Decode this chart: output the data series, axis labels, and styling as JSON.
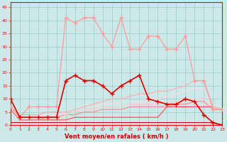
{
  "x": [
    0,
    1,
    2,
    3,
    4,
    5,
    6,
    7,
    8,
    9,
    10,
    11,
    12,
    13,
    14,
    15,
    16,
    17,
    18,
    19,
    20,
    21,
    22,
    23
  ],
  "lines": [
    {
      "y": [
        7,
        3,
        7,
        7,
        7,
        7,
        41,
        39,
        41,
        41,
        35,
        30,
        41,
        29,
        29,
        34,
        34,
        29,
        29,
        34,
        17,
        17,
        6,
        6
      ],
      "color": "#ffbbbb",
      "marker": "None",
      "lw": 0.8,
      "ms": 0,
      "zorder": 2,
      "ls": "--"
    },
    {
      "y": [
        7,
        3,
        7,
        7,
        7,
        7,
        41,
        39,
        41,
        41,
        35,
        30,
        41,
        29,
        29,
        34,
        34,
        29,
        29,
        34,
        17,
        17,
        6,
        6
      ],
      "color": "#ff9999",
      "marker": "+",
      "lw": 0.8,
      "ms": 4,
      "zorder": 3,
      "ls": "-"
    },
    {
      "y": [
        10,
        3,
        3,
        3,
        3,
        3,
        17,
        19,
        17,
        17,
        15,
        12,
        15,
        17,
        19,
        10,
        9,
        8,
        8,
        10,
        9,
        4,
        1,
        0
      ],
      "color": "#dd0000",
      "marker": "+",
      "lw": 1.2,
      "ms": 4,
      "zorder": 4,
      "ls": "-"
    },
    {
      "y": [
        6,
        2,
        2,
        2,
        2,
        2,
        2,
        3,
        3,
        3,
        3,
        3,
        3,
        3,
        3,
        3,
        3,
        7,
        7,
        7,
        7,
        7,
        7,
        6
      ],
      "color": "#ff4444",
      "marker": "None",
      "lw": 0.8,
      "ms": 0,
      "zorder": 2,
      "ls": "-"
    },
    {
      "y": [
        1,
        1,
        1,
        1,
        1,
        1,
        1,
        1,
        1,
        1,
        1,
        1,
        1,
        1,
        1,
        1,
        1,
        1,
        1,
        1,
        1,
        1,
        1,
        0
      ],
      "color": "#cc0000",
      "marker": "None",
      "lw": 0.8,
      "ms": 0,
      "zorder": 2,
      "ls": "-"
    },
    {
      "y": [
        6,
        2,
        2,
        2,
        3,
        3,
        4,
        4,
        5,
        5,
        6,
        6,
        6,
        7,
        7,
        7,
        7,
        7,
        8,
        8,
        9,
        9,
        6,
        6
      ],
      "color": "#ff8888",
      "marker": "None",
      "lw": 0.8,
      "ms": 0,
      "zorder": 2,
      "ls": "-"
    },
    {
      "y": [
        7,
        3,
        3,
        3,
        4,
        4,
        4,
        5,
        6,
        6,
        7,
        7,
        7,
        8,
        8,
        8,
        8,
        9,
        9,
        10,
        10,
        10,
        7,
        6
      ],
      "color": "#ffcccc",
      "marker": "None",
      "lw": 0.8,
      "ms": 0,
      "zorder": 2,
      "ls": "-"
    },
    {
      "y": [
        7,
        3,
        3,
        3,
        4,
        4,
        5,
        6,
        7,
        7,
        8,
        8,
        9,
        9,
        9,
        10,
        10,
        11,
        12,
        13,
        14,
        14,
        7,
        6
      ],
      "color": "#ffdddd",
      "marker": "None",
      "lw": 0.8,
      "ms": 0,
      "zorder": 2,
      "ls": "-"
    },
    {
      "y": [
        7,
        4,
        4,
        4,
        5,
        5,
        5,
        6,
        7,
        8,
        9,
        10,
        10,
        11,
        12,
        12,
        13,
        13,
        14,
        15,
        17,
        17,
        7,
        6
      ],
      "color": "#ffaaaa",
      "marker": "None",
      "lw": 0.8,
      "ms": 0,
      "zorder": 2,
      "ls": "-"
    }
  ],
  "xlim": [
    0,
    23
  ],
  "ylim": [
    0,
    47
  ],
  "yticks": [
    0,
    5,
    10,
    15,
    20,
    25,
    30,
    35,
    40,
    45
  ],
  "xticks": [
    0,
    1,
    2,
    3,
    4,
    5,
    6,
    7,
    8,
    9,
    10,
    11,
    12,
    13,
    14,
    15,
    16,
    17,
    18,
    19,
    20,
    21,
    22,
    23
  ],
  "xlabel": "Vent moyen/en rafales ( km/h )",
  "bg_color": "#cce8e8",
  "grid_color": "#99cccc",
  "axis_color": "#ff0000",
  "label_color": "#cc0000",
  "tick_label_color": "#cc0000"
}
